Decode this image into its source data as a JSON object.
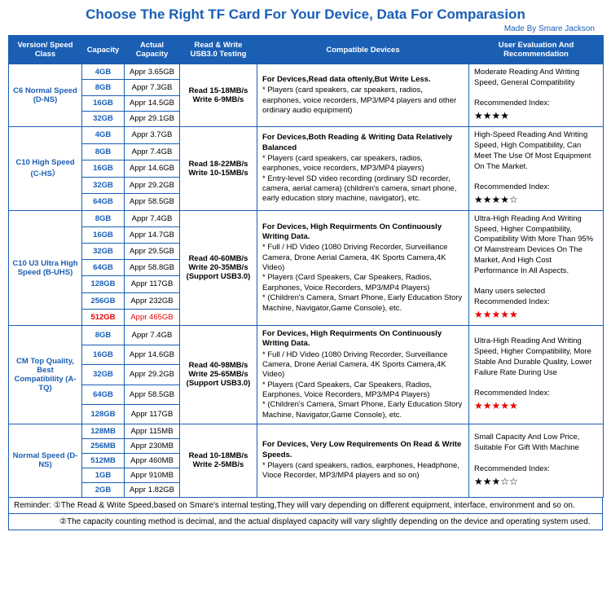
{
  "title": "Choose The Right TF Card For Your Device, Data For Comparasion",
  "author": "Made By Smare Jackson",
  "headers": {
    "class": "Version/\nSpeed Class",
    "capacity": "Capacity",
    "actual": "Actual Capacity",
    "rw": "Read & Write USB3.0 Testing",
    "devices": "Compatible Devices",
    "eval": "User Evaluation And Recommendation"
  },
  "groups": [
    {
      "class_name": "C6 Normal Speed (D-NS)",
      "rw": "Read 15-18MB/s\nWrite 6-9MB/s",
      "devices_bold": "For Devices,Read data oftenly,But Write Less.",
      "devices_body": "* Players (card speakers, car speakers, radios, earphones, voice recorders, MP3/MP4 players and other ordinary audio equipment)",
      "eval_text": "Moderate Reading And Writing Speed, General Compatibility",
      "eval_rec": "Recommended Index:",
      "stars": "★★★★",
      "star_style": "black",
      "caps": [
        {
          "c": "4GB",
          "a": "Appr 3.65GB"
        },
        {
          "c": "8GB",
          "a": "Appr 7.3GB"
        },
        {
          "c": "16GB",
          "a": "Appr 14.5GB"
        },
        {
          "c": "32GB",
          "a": "Appr 29.1GB"
        }
      ]
    },
    {
      "class_name": "C10 High Speed (C-HS）",
      "rw": "Read 18-22MB/s\nWrite 10-15MB/s",
      "devices_bold": "For Devices,Both Reading  & Writing Data Relatively Balanced",
      "devices_body": "* Players (card speakers, car speakers, radios, earphones, voice recorders, MP3/MP4 players)\n* Entry-level SD video recording (ordinary SD recorder, camera, aerial camera) (children's camera, smart phone, early education story machine, navigator), etc.",
      "eval_text": "High-Speed Reading And Writing Speed, High Compatibility, Can Meet The Use Of Most Equipment On The Market.",
      "eval_rec": "Recommended Index:",
      "stars": "★★★★☆",
      "star_style": "black",
      "caps": [
        {
          "c": "4GB",
          "a": "Appr 3.7GB"
        },
        {
          "c": "8GB",
          "a": "Appr 7.4GB"
        },
        {
          "c": "16GB",
          "a": "Appr 14.6GB"
        },
        {
          "c": "32GB",
          "a": "Appr 29.2GB"
        },
        {
          "c": "64GB",
          "a": "Appr 58.5GB"
        }
      ]
    },
    {
      "class_name": "C10 U3 Ultra High Speed\n(B-UHS)",
      "rw": "Read 40-60MB/s\nWrite 20-35MB/s\n(Support USB3.0)",
      "devices_bold": "For Devices, High Requirments On Continuously Writing Data.",
      "devices_body": "* Full / HD Video (1080 Driving Recorder, Surveillance Camera, Drone Aerial Camera, 4K Sports Camera,4K Video)\n* Players (Card Speakers, Car Speakers, Radios, Earphones, Voice Recorders, MP3/MP4 Players)\n* (Children's Camera, Smart Phone, Early Education Story Machine, Navigator,Game Console), etc.",
      "eval_text": "Ultra-High Reading And Writing Speed, Higher Compatibility, Compatibility With More Than 95% Of Mainstream Devices On The Market, And High Cost Performance In All Aspects.",
      "eval_extra": "Many users selected",
      "eval_rec": "Recommended Index:",
      "stars": "★★★★★",
      "star_style": "red",
      "highlight_last": true,
      "caps": [
        {
          "c": "8GB",
          "a": "Appr 7.4GB"
        },
        {
          "c": "16GB",
          "a": "Appr 14.7GB"
        },
        {
          "c": "32GB",
          "a": "Appr 29.5GB"
        },
        {
          "c": "64GB",
          "a": "Appr 58.8GB"
        },
        {
          "c": "128GB",
          "a": "Appr 117GB"
        },
        {
          "c": "256GB",
          "a": "Appr 232GB"
        },
        {
          "c": "512GB",
          "a": "Appr 465GB"
        }
      ]
    },
    {
      "class_name": "CM Top Quality, Best Compatibility (A-TQ)",
      "rw": "Read 40-98MB/s\nWrite 25-65MB/s\n(Support USB3.0)",
      "devices_bold": "For Devices, High Requirments On Continuously Writing Data.",
      "devices_body": "* Full / HD Video (1080 Driving Recorder, Surveillance Camera, Drone Aerial Camera, 4K Sports Camera,4K Video)\n* Players (Card Speakers, Car Speakers, Radios, Earphones, Voice Recorders, MP3/MP4 Players)\n* (Children's Camera, Smart Phone, Early Education Story Machine, Navigator,Game Console), etc.",
      "eval_text": "Ultra-High Reading And Writing Speed, Higher Compatibility, More Stable And Durable Quality, Lower Failure Rate During Use",
      "eval_rec": "Recommended Index:",
      "stars": "★★★★★",
      "star_style": "red",
      "caps": [
        {
          "c": "8GB",
          "a": "Appr 7.4GB"
        },
        {
          "c": "16GB",
          "a": "Appr 14.6GB"
        },
        {
          "c": "32GB",
          "a": "Appr 29.2GB"
        },
        {
          "c": "64GB",
          "a": "Appr 58.5GB"
        },
        {
          "c": "128GB",
          "a": "Appr 117GB"
        }
      ]
    },
    {
      "class_name": "Normal Speed (D-NS)",
      "rw": "Read 10-18MB/s\nWrite 2-5MB/s",
      "devices_bold": "For Devices, Very Low Requirements On Read & Write Speeds.",
      "devices_body": "* Players (card speakers, radios, earphones, Headphone, Vioce Recorder, MP3/MP4 players and so on)",
      "eval_text": "Small Capacity And Low Price, Suitable For Gift With Machine",
      "eval_rec": "Recommended Index:",
      "stars": "★★★☆☆",
      "star_style": "black",
      "caps": [
        {
          "c": "128MB",
          "a": "Appr 115MB"
        },
        {
          "c": "256MB",
          "a": "Appr 230MB"
        },
        {
          "c": "512MB",
          "a": "Appr 460MB"
        },
        {
          "c": "1GB",
          "a": "Appr 910MB"
        },
        {
          "c": "2GB",
          "a": "Appr 1.82GB"
        }
      ]
    }
  ],
  "reminder1": "Reminder: ①The Read & Write Speed,based on Smare's internal testing,They will vary depending on different equipment, interface, environment and so on.",
  "reminder2": "②The capacity counting method is decimal, and the actual displayed capacity will vary slightly depending on the device and operating system used."
}
